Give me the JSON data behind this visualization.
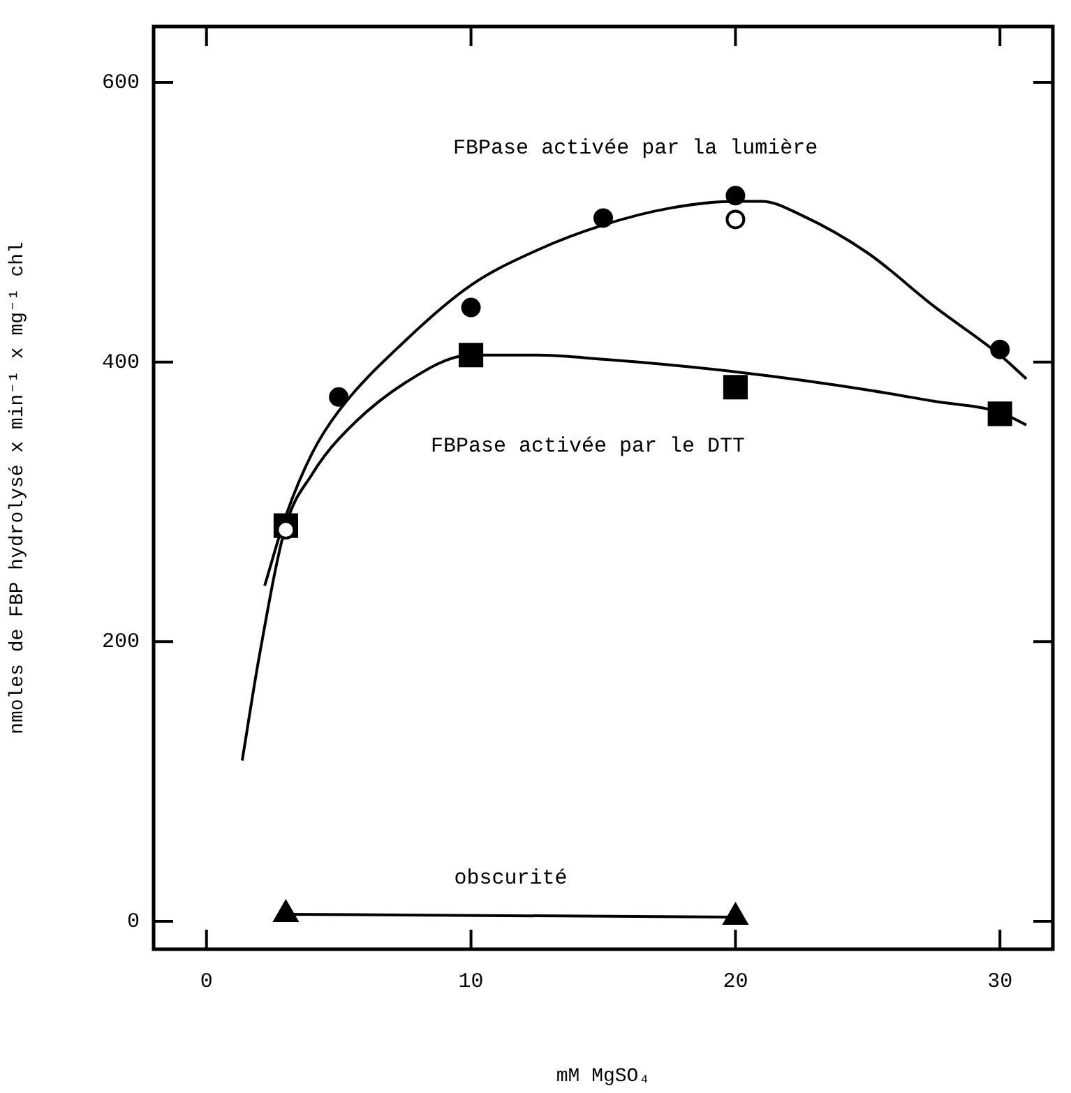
{
  "chart_data": {
    "type": "scatter",
    "xlabel": "mM MgSO₄",
    "ylabel": "nmoles de FBP hydrolysé x min⁻¹ x mg⁻¹ chl",
    "xlim": [
      -2,
      32
    ],
    "ylim": [
      -20,
      640
    ],
    "xticks": [
      0,
      10,
      20,
      30
    ],
    "yticks": [
      0,
      200,
      400,
      600
    ],
    "grid": false,
    "legend": false,
    "series": [
      {
        "type": "line",
        "name": "FBPase activée par la lumière",
        "color": "#000000",
        "marker": "none",
        "line_style": "solid",
        "x": [
          2.2,
          3,
          4,
          5,
          7.5,
          10,
          12.5,
          15,
          17.5,
          20,
          21,
          22.5,
          25,
          27.5,
          30,
          31
        ],
        "values": [
          240,
          290,
          335,
          365,
          415,
          455,
          480,
          498,
          510,
          515,
          515,
          505,
          478,
          440,
          405,
          388
        ]
      },
      {
        "type": "line",
        "name": "FBPase activée par le DTT",
        "color": "#000000",
        "marker": "none",
        "line_style": "solid",
        "x": [
          1.35,
          2,
          3,
          4,
          5,
          7.5,
          10,
          12.5,
          15,
          17.5,
          20,
          22.5,
          25,
          27.5,
          30,
          31
        ],
        "values": [
          115,
          190,
          283,
          320,
          345,
          385,
          405,
          405,
          402,
          398,
          393,
          387,
          380,
          372,
          364,
          355
        ]
      },
      {
        "type": "line",
        "name": "obscurité",
        "color": "#000000",
        "marker": "triangle",
        "line_style": "solid",
        "x": [
          3,
          20
        ],
        "values": [
          5,
          3
        ]
      },
      {
        "type": "scatter",
        "color": "#000000",
        "marker": "circle",
        "x": [
          5,
          10,
          15,
          20,
          30
        ],
        "values": [
          375,
          439,
          503,
          519,
          409
        ]
      },
      {
        "type": "scatter",
        "color": "#000000",
        "marker": "square",
        "x": [
          3,
          10,
          20,
          30
        ],
        "values": [
          283,
          405,
          382,
          363
        ]
      },
      {
        "type": "scatter",
        "color": "#ffffff",
        "marker": "circle",
        "x": [
          3,
          20
        ],
        "values": [
          280,
          502
        ]
      }
    ]
  }
}
